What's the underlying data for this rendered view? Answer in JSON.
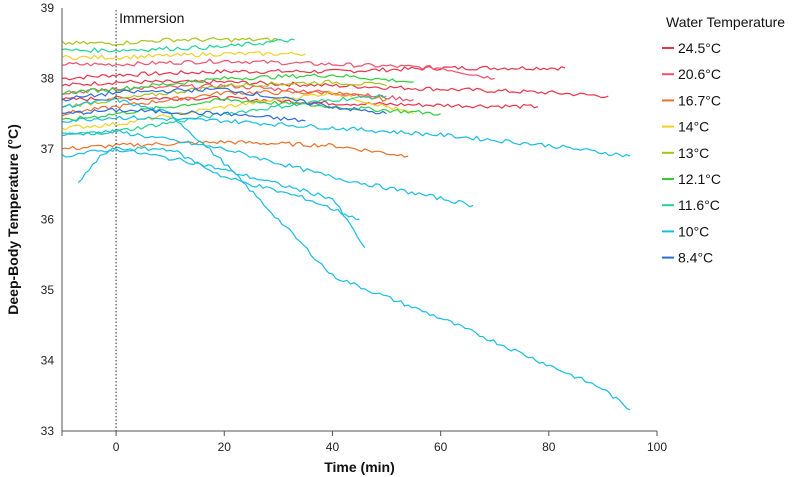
{
  "chart_data": {
    "type": "line",
    "title": "",
    "xlabel": "Time (min)",
    "ylabel": "Deep-Body Temperature (°C)",
    "xlim": [
      -10,
      100
    ],
    "ylim": [
      33,
      39
    ],
    "x_ticks": [
      0,
      20,
      40,
      60,
      80,
      100
    ],
    "y_ticks": [
      33,
      34,
      35,
      36,
      37,
      38,
      39
    ],
    "grid": false,
    "legend_position": "right",
    "legend_title": "Water Temperature",
    "annotations": [
      {
        "text": "Immersion",
        "x": 0,
        "style": "dotted vertical line"
      }
    ],
    "series": [
      {
        "name": "24.5°C",
        "color": "#e8344b",
        "traces": [
          [
            [
              -10,
              38.0
            ],
            [
              0,
              38.05
            ],
            [
              20,
              38.1
            ],
            [
              40,
              38.1
            ],
            [
              60,
              38.15
            ],
            [
              83,
              38.15
            ]
          ],
          [
            [
              -10,
              37.9
            ],
            [
              0,
              37.95
            ],
            [
              20,
              37.95
            ],
            [
              40,
              37.9
            ],
            [
              60,
              37.85
            ],
            [
              80,
              37.8
            ],
            [
              91,
              37.75
            ]
          ],
          [
            [
              -10,
              37.7
            ],
            [
              0,
              37.72
            ],
            [
              20,
              37.72
            ],
            [
              40,
              37.65
            ],
            [
              60,
              37.62
            ],
            [
              78,
              37.6
            ]
          ]
        ]
      },
      {
        "name": "20.6°C",
        "color": "#f0506e",
        "traces": [
          [
            [
              -10,
              38.2
            ],
            [
              0,
              38.2
            ],
            [
              20,
              38.25
            ],
            [
              40,
              38.2
            ],
            [
              60,
              38.15
            ],
            [
              70,
              38.0
            ]
          ],
          [
            [
              -10,
              37.8
            ],
            [
              0,
              37.85
            ],
            [
              20,
              37.9
            ],
            [
              40,
              37.8
            ],
            [
              55,
              37.7
            ]
          ]
        ]
      },
      {
        "name": "16.7°C",
        "color": "#e8712b",
        "traces": [
          [
            [
              -10,
              37.0
            ],
            [
              0,
              37.05
            ],
            [
              20,
              37.1
            ],
            [
              40,
              37.05
            ],
            [
              54,
              36.9
            ]
          ],
          [
            [
              -10,
              37.5
            ],
            [
              0,
              37.6
            ],
            [
              20,
              37.8
            ],
            [
              40,
              37.8
            ],
            [
              50,
              37.7
            ]
          ]
        ]
      },
      {
        "name": "14°C",
        "color": "#f2d027",
        "traces": [
          [
            [
              -10,
              38.3
            ],
            [
              0,
              38.3
            ],
            [
              20,
              38.35
            ],
            [
              35,
              38.35
            ]
          ],
          [
            [
              -10,
              37.3
            ],
            [
              0,
              37.35
            ],
            [
              20,
              37.6
            ],
            [
              40,
              37.8
            ],
            [
              55,
              37.5
            ]
          ]
        ]
      },
      {
        "name": "13°C",
        "color": "#a8c21a",
        "traces": [
          [
            [
              -10,
              38.5
            ],
            [
              0,
              38.5
            ],
            [
              10,
              38.55
            ],
            [
              30,
              38.55
            ]
          ],
          [
            [
              -10,
              37.6
            ],
            [
              0,
              37.7
            ],
            [
              20,
              37.9
            ],
            [
              40,
              37.95
            ],
            [
              50,
              37.9
            ]
          ]
        ]
      },
      {
        "name": "12.1°C",
        "color": "#2fcf3a",
        "traces": [
          [
            [
              -10,
              37.8
            ],
            [
              0,
              37.85
            ],
            [
              20,
              38.0
            ],
            [
              40,
              38.05
            ],
            [
              55,
              37.95
            ]
          ],
          [
            [
              -10,
              37.4
            ],
            [
              0,
              37.5
            ],
            [
              20,
              37.7
            ],
            [
              40,
              37.6
            ],
            [
              60,
              37.5
            ]
          ]
        ]
      },
      {
        "name": "11.6°C",
        "color": "#1fd39a",
        "traces": [
          [
            [
              -10,
              38.4
            ],
            [
              0,
              38.4
            ],
            [
              20,
              38.45
            ],
            [
              33,
              38.55
            ]
          ],
          [
            [
              -10,
              37.2
            ],
            [
              0,
              37.25
            ],
            [
              20,
              37.5
            ],
            [
              40,
              37.7
            ],
            [
              50,
              37.75
            ]
          ]
        ]
      },
      {
        "name": "10°C",
        "color": "#19bde0",
        "traces": [
          [
            [
              -10,
              37.6
            ],
            [
              0,
              37.7
            ],
            [
              10,
              37.5
            ],
            [
              20,
              36.8
            ],
            [
              30,
              36.0
            ],
            [
              40,
              35.2
            ],
            [
              60,
              34.6
            ],
            [
              75,
              34.1
            ],
            [
              90,
              33.6
            ],
            [
              95,
              33.3
            ]
          ],
          [
            [
              -10,
              37.4
            ],
            [
              0,
              37.45
            ],
            [
              20,
              37.4
            ],
            [
              40,
              37.3
            ],
            [
              60,
              37.2
            ],
            [
              80,
              37.05
            ],
            [
              95,
              36.9
            ]
          ],
          [
            [
              -10,
              37.2
            ],
            [
              0,
              37.25
            ],
            [
              20,
              37.0
            ],
            [
              40,
              36.6
            ],
            [
              60,
              36.3
            ],
            [
              66,
              36.2
            ]
          ],
          [
            [
              -10,
              36.9
            ],
            [
              0,
              37.0
            ],
            [
              15,
              36.8
            ],
            [
              30,
              36.5
            ],
            [
              40,
              36.3
            ],
            [
              46,
              35.6
            ]
          ],
          [
            [
              -7,
              36.5
            ],
            [
              -3,
              36.9
            ],
            [
              0,
              37.0
            ],
            [
              10,
              37.0
            ],
            [
              20,
              36.6
            ],
            [
              35,
              36.3
            ],
            [
              45,
              36.0
            ]
          ]
        ]
      },
      {
        "name": "8.4°C",
        "color": "#2d6bdc",
        "traces": [
          [
            [
              -10,
              37.7
            ],
            [
              0,
              37.8
            ],
            [
              20,
              37.85
            ],
            [
              40,
              37.6
            ],
            [
              50,
              37.5
            ]
          ],
          [
            [
              -10,
              37.5
            ],
            [
              0,
              37.55
            ],
            [
              20,
              37.5
            ],
            [
              35,
              37.4
            ]
          ]
        ]
      }
    ]
  }
}
